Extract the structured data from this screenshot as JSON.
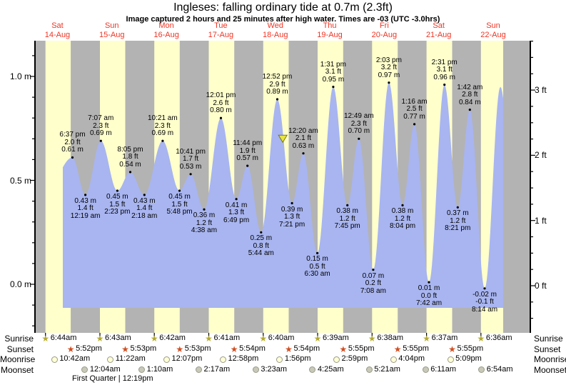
{
  "title": "Ingleses: falling  ordinary tide at 0.7m (2.3ft)",
  "subtitle": "Image captured 2 hours and 25 minutes after high water. Times are -03 (UTC -3.0hrs)",
  "days": [
    {
      "name": "Sat",
      "date": "14-Aug"
    },
    {
      "name": "Sun",
      "date": "15-Aug"
    },
    {
      "name": "Mon",
      "date": "16-Aug"
    },
    {
      "name": "Tue",
      "date": "17-Aug"
    },
    {
      "name": "Wed",
      "date": "18-Aug"
    },
    {
      "name": "Thu",
      "date": "19-Aug"
    },
    {
      "name": "Fri",
      "date": "20-Aug"
    },
    {
      "name": "Sat",
      "date": "21-Aug"
    },
    {
      "name": "Sun",
      "date": "22-Aug"
    }
  ],
  "colors": {
    "day_band": "#ffffcc",
    "night_band": "#b3b3b3",
    "tide_fill": "#a8b5f0",
    "axis": "#000000",
    "day_label": "#ee3524",
    "dot": "#000000",
    "now_marker_fill": "#e9e43e",
    "now_marker_stroke": "#77771a",
    "sunrise_star": "#b3aa2e",
    "sunset_star": "#cf4f22",
    "moonrise_fill": "#ffffd6",
    "moonset_fill": "#c9c9b9",
    "moon_border": "#999988"
  },
  "chart_data": {
    "type": "area",
    "unit_left": "m",
    "unit_right": "ft",
    "ylim_m": [
      -0.22,
      1.17
    ],
    "grid": false,
    "axes": {
      "left": [
        {
          "label": "0.0 m",
          "m": 0.0
        },
        {
          "label": "0.5 m",
          "m": 0.5
        },
        {
          "label": "1.0 m",
          "m": 1.0
        }
      ],
      "right": [
        {
          "label": "0 ft",
          "ft": 0
        },
        {
          "label": "1 ft",
          "ft": 1
        },
        {
          "label": "2 ft",
          "ft": 2
        },
        {
          "label": "3 ft",
          "ft": 3
        }
      ]
    },
    "now": {
      "day": 4,
      "time": "3:17 pm",
      "m": 0.7
    },
    "extremes": [
      {
        "kind": "low",
        "day": 0,
        "time": "7:00 am",
        "m": 0.45,
        "hidden": true
      },
      {
        "kind": "high",
        "day": 0,
        "time": "6:37 pm",
        "m": 0.61,
        "m_label": "0.61 m",
        "ft_label": "2.0 ft"
      },
      {
        "kind": "low",
        "day": 1,
        "time": "12:19 am",
        "m": 0.43,
        "m_label": "0.43 m",
        "ft_label": "1.4 ft"
      },
      {
        "kind": "high",
        "day": 1,
        "time": "7:07 am",
        "m": 0.69,
        "m_label": "0.69 m",
        "ft_label": "2.3 ft"
      },
      {
        "kind": "low",
        "day": 1,
        "time": "2:23 pm",
        "m": 0.45,
        "m_label": "0.45 m",
        "ft_label": "1.5 ft"
      },
      {
        "kind": "high",
        "day": 1,
        "time": "8:05 pm",
        "m": 0.54,
        "m_label": "0.54 m",
        "ft_label": "1.8 ft"
      },
      {
        "kind": "low",
        "day": 2,
        "time": "2:18 am",
        "m": 0.43,
        "m_label": "0.43 m",
        "ft_label": "1.4 ft"
      },
      {
        "kind": "high",
        "day": 2,
        "time": "10:21 am",
        "m": 0.69,
        "m_label": "0.69 m",
        "ft_label": "2.3 ft"
      },
      {
        "kind": "low",
        "day": 2,
        "time": "5:48 pm",
        "m": 0.45,
        "m_label": "0.45 m",
        "ft_label": "1.5 ft"
      },
      {
        "kind": "high",
        "day": 2,
        "time": "10:41 pm",
        "m": 0.53,
        "m_label": "0.53 m",
        "ft_label": "1.7 ft"
      },
      {
        "kind": "low",
        "day": 3,
        "time": "4:38 am",
        "m": 0.36,
        "m_label": "0.36 m",
        "ft_label": "1.2 ft"
      },
      {
        "kind": "high",
        "day": 3,
        "time": "12:01 pm",
        "m": 0.8,
        "m_label": "0.80 m",
        "ft_label": "2.6 ft"
      },
      {
        "kind": "low",
        "day": 3,
        "time": "6:49 pm",
        "m": 0.41,
        "m_label": "0.41 m",
        "ft_label": "1.3 ft"
      },
      {
        "kind": "high",
        "day": 3,
        "time": "11:44 pm",
        "m": 0.57,
        "m_label": "0.57 m",
        "ft_label": "1.9 ft"
      },
      {
        "kind": "low",
        "day": 4,
        "time": "5:44 am",
        "m": 0.25,
        "m_label": "0.25 m",
        "ft_label": "0.8 ft"
      },
      {
        "kind": "high",
        "day": 4,
        "time": "12:52 pm",
        "m": 0.89,
        "m_label": "0.89 m",
        "ft_label": "2.9 ft"
      },
      {
        "kind": "low",
        "day": 4,
        "time": "7:21 pm",
        "m": 0.39,
        "m_label": "0.39 m",
        "ft_label": "1.3 ft"
      },
      {
        "kind": "high",
        "day": 5,
        "time": "12:20 am",
        "m": 0.63,
        "m_label": "0.63 m",
        "ft_label": "2.1 ft"
      },
      {
        "kind": "low",
        "day": 5,
        "time": "6:30 am",
        "m": 0.15,
        "m_label": "0.15 m",
        "ft_label": "0.5 ft"
      },
      {
        "kind": "high",
        "day": 5,
        "time": "1:31 pm",
        "m": 0.95,
        "m_label": "0.95 m",
        "ft_label": "3.1 ft"
      },
      {
        "kind": "low",
        "day": 5,
        "time": "7:45 pm",
        "m": 0.38,
        "m_label": "0.38 m",
        "ft_label": "1.2 ft"
      },
      {
        "kind": "high",
        "day": 6,
        "time": "12:49 am",
        "m": 0.7,
        "m_label": "0.70 m",
        "ft_label": "2.3 ft"
      },
      {
        "kind": "low",
        "day": 6,
        "time": "7:08 am",
        "m": 0.07,
        "m_label": "0.07 m",
        "ft_label": "0.2 ft"
      },
      {
        "kind": "high",
        "day": 6,
        "time": "2:03 pm",
        "m": 0.97,
        "m_label": "0.97 m",
        "ft_label": "3.2 ft"
      },
      {
        "kind": "low",
        "day": 6,
        "time": "8:04 pm",
        "m": 0.38,
        "m_label": "0.38 m",
        "ft_label": "1.2 ft"
      },
      {
        "kind": "high",
        "day": 7,
        "time": "1:16 am",
        "m": 0.77,
        "m_label": "0.77 m",
        "ft_label": "2.5 ft"
      },
      {
        "kind": "low",
        "day": 7,
        "time": "7:42 am",
        "m": 0.01,
        "m_label": "0.01 m",
        "ft_label": "0.0 ft"
      },
      {
        "kind": "high",
        "day": 7,
        "time": "2:31 pm",
        "m": 0.96,
        "m_label": "0.96 m",
        "ft_label": "3.1 ft"
      },
      {
        "kind": "low",
        "day": 7,
        "time": "8:21 pm",
        "m": 0.37,
        "m_label": "0.37 m",
        "ft_label": "1.2 ft"
      },
      {
        "kind": "high",
        "day": 8,
        "time": "1:42 am",
        "m": 0.84,
        "m_label": "0.84 m",
        "ft_label": "2.8 ft"
      },
      {
        "kind": "low",
        "day": 8,
        "time": "8:14 am",
        "m": -0.02,
        "m_label": "-0.02 m",
        "ft_label": "-0.1 ft"
      },
      {
        "kind": "high",
        "day": 8,
        "time": "3:10 pm",
        "m": 0.95,
        "hidden": true
      },
      {
        "kind": "low",
        "day": 8,
        "time": "9:15 pm",
        "m": 0.37,
        "hidden": true
      }
    ]
  },
  "astro": {
    "rows": [
      {
        "label": "Sunrise",
        "icon": "sunrise-star-icon",
        "events": [
          {
            "day": 0,
            "time": "6:44am"
          },
          {
            "day": 1,
            "time": "6:43am"
          },
          {
            "day": 2,
            "time": "6:42am"
          },
          {
            "day": 3,
            "time": "6:41am"
          },
          {
            "day": 4,
            "time": "6:40am"
          },
          {
            "day": 5,
            "time": "6:39am"
          },
          {
            "day": 6,
            "time": "6:38am"
          },
          {
            "day": 7,
            "time": "6:37am"
          },
          {
            "day": 8,
            "time": "6:36am"
          }
        ]
      },
      {
        "label": "Sunset",
        "icon": "sunset-star-icon",
        "events": [
          {
            "day": 0,
            "time": "5:52pm"
          },
          {
            "day": 1,
            "time": "5:53pm"
          },
          {
            "day": 2,
            "time": "5:53pm"
          },
          {
            "day": 3,
            "time": "5:54pm"
          },
          {
            "day": 4,
            "time": "5:54pm"
          },
          {
            "day": 5,
            "time": "5:55pm"
          },
          {
            "day": 6,
            "time": "5:55pm"
          },
          {
            "day": 7,
            "time": "5:55pm"
          }
        ]
      },
      {
        "label": "Moonrise",
        "icon": "moonrise-circle-icon",
        "events": [
          {
            "day": 0,
            "time": "10:42am"
          },
          {
            "day": 1,
            "time": "11:22am"
          },
          {
            "day": 2,
            "time": "12:07pm"
          },
          {
            "day": 3,
            "time": "12:58pm"
          },
          {
            "day": 4,
            "time": "1:56pm"
          },
          {
            "day": 5,
            "time": "2:59pm"
          },
          {
            "day": 6,
            "time": "4:04pm"
          },
          {
            "day": 7,
            "time": "5:09pm"
          }
        ]
      },
      {
        "label": "Moonset",
        "icon": "moonset-circle-icon",
        "events": [
          {
            "day": 1,
            "time": "12:04am"
          },
          {
            "day": 2,
            "time": "1:10am"
          },
          {
            "day": 3,
            "time": "2:17am"
          },
          {
            "day": 4,
            "time": "3:23am"
          },
          {
            "day": 5,
            "time": "4:25am"
          },
          {
            "day": 6,
            "time": "5:21am"
          },
          {
            "day": 7,
            "time": "6:11am"
          },
          {
            "day": 8,
            "time": "6:54am"
          }
        ]
      }
    ],
    "phase": {
      "label": "First Quarter | 12:19pm",
      "day": 1,
      "time": "12:19pm"
    }
  }
}
